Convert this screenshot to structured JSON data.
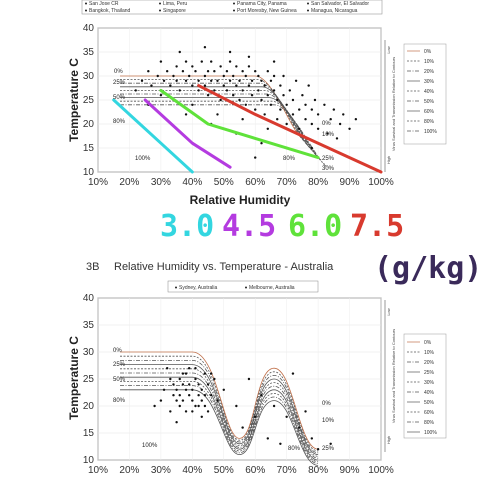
{
  "chart_data": [
    {
      "type": "scatter",
      "title": "",
      "xlabel": "Relative Humidity",
      "ylabel": "Temperature C",
      "xlim": [
        10,
        100
      ],
      "ylim": [
        10,
        40
      ],
      "x_ticks": [
        "10%",
        "20%",
        "30%",
        "40%",
        "50%",
        "60%",
        "70%",
        "80%",
        "90%",
        "100%"
      ],
      "y_ticks": [
        "10",
        "15",
        "20",
        "25",
        "30",
        "35",
        "40"
      ],
      "legend_top": [
        "San Jose CR",
        "Lima, Peru",
        "Panama City, Panama",
        "San Salvador, El Salvador",
        "Bangkok, Thailand",
        "Singapore",
        "Port Moresby, New Guinea",
        "Managua, Nicaragua"
      ],
      "side_note": "Virus Survival and Transmission Relative to Contours",
      "side_low": "Low",
      "side_high": "High",
      "contour_legend": [
        "0%",
        "10%",
        "20%",
        "30%",
        "40%",
        "50%",
        "60%",
        "80%",
        "100%"
      ],
      "contour_labels": [
        "0%",
        "25%",
        "50%",
        "80%",
        "100%",
        "0%",
        "10%",
        "25%",
        "30%",
        "80%"
      ],
      "humidity_lines": [
        {
          "name": "3.0",
          "color": "#33d6e0",
          "points": [
            [
              15,
              25
            ],
            [
              30,
              16
            ],
            [
              40,
              10
            ]
          ]
        },
        {
          "name": "4.5",
          "color": "#b43be0",
          "points": [
            [
              25,
              25
            ],
            [
              40,
              16
            ],
            [
              52,
              11
            ]
          ]
        },
        {
          "name": "6.0",
          "color": "#5fe23a",
          "points": [
            [
              30,
              27
            ],
            [
              45,
              20
            ],
            [
              60,
              17
            ],
            [
              80,
              13
            ]
          ]
        },
        {
          "name": "7.5",
          "color": "#d83a2e",
          "points": [
            [
              42,
              28
            ],
            [
              60,
              22
            ],
            [
              80,
              16
            ],
            [
              100,
              10
            ]
          ]
        }
      ],
      "scatter_points": [
        [
          22,
          27
        ],
        [
          24,
          29
        ],
        [
          26,
          31
        ],
        [
          27,
          28
        ],
        [
          29,
          30
        ],
        [
          30,
          33
        ],
        [
          31,
          29
        ],
        [
          32,
          31
        ],
        [
          33,
          28
        ],
        [
          34,
          30
        ],
        [
          35,
          32
        ],
        [
          35,
          29
        ],
        [
          36,
          27
        ],
        [
          37,
          31
        ],
        [
          38,
          29
        ],
        [
          38,
          33
        ],
        [
          39,
          30
        ],
        [
          40,
          28
        ],
        [
          40,
          32
        ],
        [
          41,
          31
        ],
        [
          42,
          29
        ],
        [
          42,
          27
        ],
        [
          43,
          33
        ],
        [
          44,
          30
        ],
        [
          44,
          28
        ],
        [
          45,
          31
        ],
        [
          45,
          26
        ],
        [
          46,
          29
        ],
        [
          46,
          33
        ],
        [
          47,
          27
        ],
        [
          47,
          31
        ],
        [
          48,
          29
        ],
        [
          49,
          32
        ],
        [
          49,
          25
        ],
        [
          50,
          30
        ],
        [
          50,
          28
        ],
        [
          51,
          31
        ],
        [
          51,
          27
        ],
        [
          52,
          29
        ],
        [
          52,
          33
        ],
        [
          53,
          26
        ],
        [
          53,
          30
        ],
        [
          54,
          28
        ],
        [
          54,
          32
        ],
        [
          55,
          29
        ],
        [
          55,
          25
        ],
        [
          56,
          31
        ],
        [
          56,
          27
        ],
        [
          57,
          30
        ],
        [
          57,
          24
        ],
        [
          58,
          28
        ],
        [
          58,
          32
        ],
        [
          59,
          26
        ],
        [
          59,
          29
        ],
        [
          60,
          31
        ],
        [
          60,
          23
        ],
        [
          61,
          27
        ],
        [
          61,
          30
        ],
        [
          62,
          25
        ],
        [
          62,
          29
        ],
        [
          63,
          28
        ],
        [
          63,
          22
        ],
        [
          64,
          31
        ],
        [
          64,
          26
        ],
        [
          65,
          29
        ],
        [
          65,
          24
        ],
        [
          66,
          27
        ],
        [
          66,
          30
        ],
        [
          67,
          25
        ],
        [
          67,
          21
        ],
        [
          68,
          28
        ],
        [
          68,
          23
        ],
        [
          69,
          26
        ],
        [
          69,
          30
        ],
        [
          70,
          24
        ],
        [
          70,
          20
        ],
        [
          71,
          27
        ],
        [
          72,
          22
        ],
        [
          72,
          25
        ],
        [
          73,
          29
        ],
        [
          74,
          23
        ],
        [
          74,
          19
        ],
        [
          75,
          26
        ],
        [
          76,
          21
        ],
        [
          76,
          24
        ],
        [
          77,
          28
        ],
        [
          78,
          20
        ],
        [
          78,
          23
        ],
        [
          79,
          25
        ],
        [
          80,
          19
        ],
        [
          80,
          22
        ],
        [
          82,
          24
        ],
        [
          83,
          18
        ],
        [
          84,
          21
        ],
        [
          85,
          23
        ],
        [
          86,
          17
        ],
        [
          87,
          20
        ],
        [
          88,
          22
        ],
        [
          90,
          19
        ],
        [
          92,
          21
        ],
        [
          36,
          35
        ],
        [
          44,
          36
        ],
        [
          52,
          35
        ],
        [
          58,
          34
        ],
        [
          66,
          33
        ],
        [
          30,
          26
        ],
        [
          26,
          24
        ],
        [
          48,
          22
        ],
        [
          56,
          21
        ],
        [
          64,
          19
        ],
        [
          40,
          24
        ],
        [
          34,
          25
        ],
        [
          38,
          22
        ],
        [
          46,
          20
        ],
        [
          54,
          18
        ],
        [
          62,
          16
        ],
        [
          70,
          15
        ],
        [
          78,
          15
        ],
        [
          60,
          13
        ]
      ]
    },
    {
      "type": "scatter",
      "title": "Relative Humidity vs. Temperature - Australia",
      "panel_label": "3B",
      "xlabel": "",
      "ylabel": "Temperature C",
      "xlim": [
        10,
        100
      ],
      "ylim": [
        10,
        40
      ],
      "x_ticks": [
        "10%",
        "20%",
        "30%",
        "40%",
        "50%",
        "60%",
        "70%",
        "80%",
        "90%",
        "100%"
      ],
      "y_ticks": [
        "10",
        "15",
        "20",
        "25",
        "30",
        "35",
        "40"
      ],
      "series_legend": [
        "Sydney, Australia",
        "Melbourne, Australia"
      ],
      "side_note": "Virus Survival and Transmission Relative to Contours",
      "side_low": "Low",
      "side_high": "High",
      "contour_legend": [
        "0%",
        "10%",
        "20%",
        "25%",
        "30%",
        "40%",
        "50%",
        "60%",
        "80%",
        "100%"
      ],
      "contour_labels": [
        "0%",
        "25%",
        "50%",
        "80%",
        "100%",
        "0%",
        "10%",
        "25%",
        "80%"
      ],
      "scatter_points": [
        [
          33,
          25
        ],
        [
          34,
          24
        ],
        [
          35,
          23
        ],
        [
          36,
          25
        ],
        [
          36,
          22
        ],
        [
          37,
          24
        ],
        [
          37,
          21
        ],
        [
          38,
          23
        ],
        [
          38,
          26
        ],
        [
          39,
          22
        ],
        [
          39,
          24
        ],
        [
          40,
          21
        ],
        [
          40,
          23
        ],
        [
          41,
          25
        ],
        [
          41,
          20
        ],
        [
          42,
          22
        ],
        [
          42,
          24
        ],
        [
          43,
          21
        ],
        [
          43,
          23
        ],
        [
          44,
          20
        ],
        [
          44,
          22
        ],
        [
          45,
          24
        ],
        [
          45,
          19
        ],
        [
          35,
          21
        ],
        [
          34,
          22
        ],
        [
          36,
          20
        ],
        [
          38,
          19
        ],
        [
          40,
          19
        ],
        [
          42,
          20
        ],
        [
          37,
          26
        ],
        [
          39,
          27
        ],
        [
          31,
          23
        ],
        [
          30,
          21
        ],
        [
          46,
          22
        ],
        [
          47,
          25
        ],
        [
          46,
          26
        ],
        [
          32,
          27
        ],
        [
          33,
          19
        ],
        [
          41,
          27
        ],
        [
          44,
          26
        ],
        [
          28,
          20
        ],
        [
          48,
          21
        ],
        [
          35,
          17
        ],
        [
          43,
          18
        ],
        [
          50,
          23
        ],
        [
          58,
          25
        ],
        [
          62,
          22
        ],
        [
          66,
          20
        ],
        [
          70,
          18
        ],
        [
          74,
          16
        ],
        [
          78,
          14
        ],
        [
          80,
          12
        ],
        [
          84,
          13
        ],
        [
          72,
          26
        ],
        [
          64,
          14
        ],
        [
          56,
          16
        ],
        [
          54,
          20
        ],
        [
          60,
          18
        ],
        [
          68,
          13
        ],
        [
          76,
          19
        ]
      ]
    }
  ],
  "overlay": {
    "labels": [
      {
        "text": "3.0",
        "color": "#33d6e0"
      },
      {
        "text": "4.5",
        "color": "#b43be0"
      },
      {
        "text": "6.0",
        "color": "#5fe23a"
      },
      {
        "text": "7.5",
        "color": "#d83a2e"
      }
    ],
    "unit": "(g/kg)",
    "unit_color": "#3a2a5a"
  }
}
